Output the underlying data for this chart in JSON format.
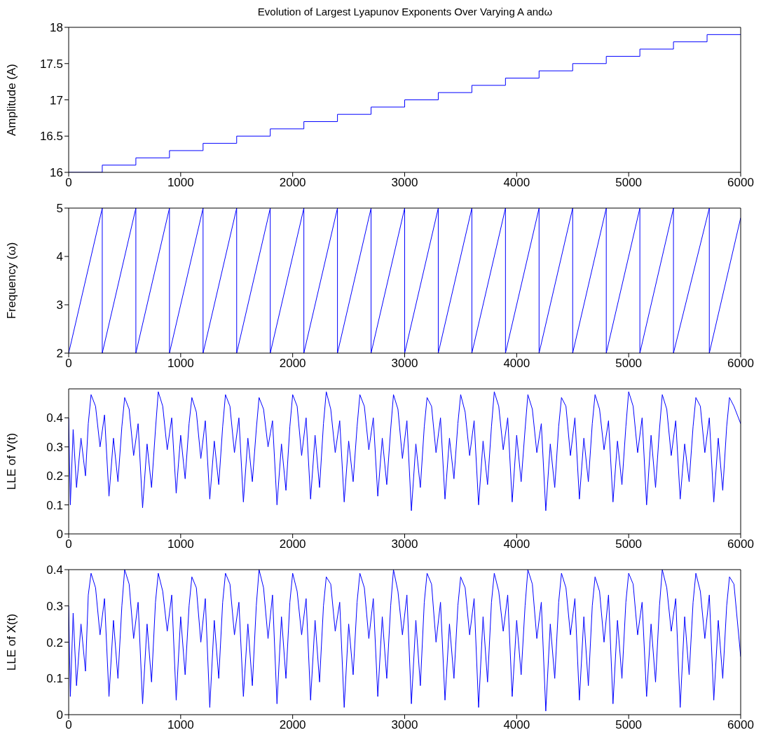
{
  "chart_data": [
    {
      "type": "step",
      "title": "Evolution of Largest Lyapunov Exponents Over Varying A andω",
      "ylabel": "Amplitude (A)",
      "xlim": [
        0,
        6000
      ],
      "xticks": [
        0,
        1000,
        2000,
        3000,
        4000,
        5000,
        6000
      ],
      "ylim": [
        16,
        18
      ],
      "yticks": [
        16,
        16.5,
        17,
        17.5,
        18
      ],
      "grid": false,
      "marker": "none",
      "line_style": "solid",
      "x": [
        0,
        300,
        600,
        900,
        1200,
        1500,
        1800,
        2100,
        2400,
        2700,
        3000,
        3300,
        3600,
        3900,
        4200,
        4500,
        4800,
        5100,
        5400,
        5700,
        6000
      ],
      "series": [
        {
          "color": "#0000ff",
          "values": [
            16,
            16.1,
            16.2,
            16.3,
            16.4,
            16.5,
            16.6,
            16.7,
            16.8,
            16.9,
            17,
            17.1,
            17.2,
            17.3,
            17.4,
            17.5,
            17.6,
            17.7,
            17.8,
            17.9,
            17.9
          ]
        }
      ]
    },
    {
      "type": "line",
      "ylabel": "Frequency (ω)",
      "xlim": [
        0,
        6000
      ],
      "xticks": [
        0,
        1000,
        2000,
        3000,
        4000,
        5000,
        6000
      ],
      "ylim": [
        2,
        5
      ],
      "yticks": [
        2,
        3,
        4,
        5
      ],
      "grid": false,
      "marker": "none",
      "line_style": "solid",
      "x": [
        0,
        300,
        300,
        600,
        600,
        900,
        900,
        1200,
        1200,
        1500,
        1500,
        1800,
        1800,
        2100,
        2100,
        2400,
        2400,
        2700,
        2700,
        3000,
        3000,
        3300,
        3300,
        3600,
        3600,
        3900,
        3900,
        4200,
        4200,
        4500,
        4500,
        4800,
        4800,
        5100,
        5100,
        5400,
        5400,
        5720,
        5720,
        6000
      ],
      "series": [
        {
          "color": "#0000ff",
          "values": [
            2,
            5,
            2,
            5,
            2,
            5,
            2,
            5,
            2,
            5,
            2,
            5,
            2,
            5,
            2,
            5,
            2,
            5,
            2,
            5,
            2,
            5,
            2,
            5,
            2,
            5,
            2,
            5,
            2,
            5,
            2,
            5,
            2,
            5,
            2,
            5,
            2,
            5,
            2,
            4.8
          ]
        }
      ]
    },
    {
      "type": "line",
      "ylabel": "LLE of V(t)",
      "xlim": [
        0,
        6000
      ],
      "xticks": [
        0,
        1000,
        2000,
        3000,
        4000,
        5000,
        6000
      ],
      "ylim": [
        0,
        0.5
      ],
      "yticks": [
        0,
        0.1,
        0.2,
        0.3,
        0.4
      ],
      "grid": false,
      "marker": "none",
      "line_style": "solid",
      "x": [
        0,
        15,
        40,
        70,
        110,
        150,
        175,
        200,
        240,
        280,
        320,
        360,
        400,
        440,
        475,
        500,
        540,
        580,
        620,
        660,
        700,
        740,
        775,
        800,
        840,
        880,
        920,
        960,
        1000,
        1040,
        1075,
        1100,
        1140,
        1180,
        1220,
        1260,
        1300,
        1340,
        1375,
        1400,
        1440,
        1480,
        1520,
        1560,
        1600,
        1640,
        1675,
        1700,
        1740,
        1780,
        1820,
        1860,
        1900,
        1940,
        1975,
        2000,
        2040,
        2080,
        2120,
        2160,
        2200,
        2240,
        2275,
        2300,
        2340,
        2380,
        2420,
        2460,
        2500,
        2540,
        2575,
        2600,
        2640,
        2680,
        2720,
        2760,
        2800,
        2840,
        2875,
        2900,
        2940,
        2980,
        3020,
        3060,
        3100,
        3140,
        3175,
        3200,
        3240,
        3280,
        3320,
        3360,
        3400,
        3440,
        3475,
        3500,
        3540,
        3580,
        3620,
        3660,
        3700,
        3740,
        3775,
        3800,
        3840,
        3880,
        3920,
        3960,
        4000,
        4040,
        4075,
        4100,
        4140,
        4180,
        4220,
        4260,
        4300,
        4340,
        4375,
        4400,
        4440,
        4480,
        4520,
        4560,
        4600,
        4640,
        4675,
        4700,
        4740,
        4780,
        4820,
        4860,
        4900,
        4940,
        4975,
        5000,
        5040,
        5080,
        5120,
        5160,
        5200,
        5240,
        5275,
        5300,
        5340,
        5380,
        5420,
        5460,
        5500,
        5540,
        5575,
        5600,
        5640,
        5680,
        5720,
        5760,
        5800,
        5840,
        5875,
        5900,
        5940,
        6000
      ],
      "series": [
        {
          "color": "#0000ff",
          "values": [
            0.4,
            0.1,
            0.36,
            0.16,
            0.33,
            0.2,
            0.38,
            0.48,
            0.44,
            0.3,
            0.41,
            0.13,
            0.33,
            0.18,
            0.37,
            0.47,
            0.43,
            0.27,
            0.38,
            0.09,
            0.31,
            0.16,
            0.36,
            0.49,
            0.44,
            0.29,
            0.4,
            0.14,
            0.34,
            0.19,
            0.38,
            0.47,
            0.42,
            0.26,
            0.39,
            0.12,
            0.32,
            0.17,
            0.37,
            0.48,
            0.44,
            0.28,
            0.4,
            0.11,
            0.33,
            0.18,
            0.36,
            0.47,
            0.43,
            0.3,
            0.39,
            0.1,
            0.31,
            0.15,
            0.37,
            0.48,
            0.44,
            0.27,
            0.4,
            0.12,
            0.34,
            0.16,
            0.38,
            0.49,
            0.43,
            0.28,
            0.39,
            0.11,
            0.32,
            0.18,
            0.37,
            0.48,
            0.44,
            0.29,
            0.4,
            0.13,
            0.33,
            0.17,
            0.36,
            0.48,
            0.43,
            0.26,
            0.39,
            0.08,
            0.31,
            0.16,
            0.37,
            0.47,
            0.44,
            0.28,
            0.4,
            0.12,
            0.33,
            0.19,
            0.38,
            0.48,
            0.42,
            0.27,
            0.39,
            0.1,
            0.32,
            0.17,
            0.37,
            0.49,
            0.44,
            0.29,
            0.4,
            0.11,
            0.34,
            0.18,
            0.36,
            0.48,
            0.43,
            0.28,
            0.38,
            0.08,
            0.31,
            0.16,
            0.37,
            0.47,
            0.44,
            0.27,
            0.4,
            0.12,
            0.33,
            0.18,
            0.38,
            0.48,
            0.43,
            0.29,
            0.39,
            0.11,
            0.32,
            0.17,
            0.37,
            0.49,
            0.44,
            0.28,
            0.4,
            0.1,
            0.34,
            0.16,
            0.36,
            0.48,
            0.43,
            0.27,
            0.39,
            0.12,
            0.31,
            0.18,
            0.37,
            0.47,
            0.44,
            0.28,
            0.4,
            0.11,
            0.33,
            0.15,
            0.37,
            0.47,
            0.44,
            0.38
          ]
        }
      ]
    },
    {
      "type": "line",
      "ylabel": "LLE of X(t)",
      "xlim": [
        0,
        6000
      ],
      "xticks": [
        0,
        1000,
        2000,
        3000,
        4000,
        5000,
        6000
      ],
      "ylim": [
        0,
        0.4
      ],
      "yticks": [
        0,
        0.1,
        0.2,
        0.3,
        0.4
      ],
      "grid": false,
      "marker": "none",
      "line_style": "solid",
      "x": [
        0,
        15,
        40,
        70,
        110,
        150,
        175,
        200,
        240,
        280,
        320,
        360,
        400,
        440,
        475,
        500,
        540,
        580,
        620,
        660,
        700,
        740,
        775,
        800,
        840,
        880,
        920,
        960,
        1000,
        1040,
        1075,
        1100,
        1140,
        1180,
        1220,
        1260,
        1300,
        1340,
        1375,
        1400,
        1440,
        1480,
        1520,
        1560,
        1600,
        1640,
        1675,
        1700,
        1740,
        1780,
        1820,
        1860,
        1900,
        1940,
        1975,
        2000,
        2040,
        2080,
        2120,
        2160,
        2200,
        2240,
        2275,
        2300,
        2340,
        2380,
        2420,
        2460,
        2500,
        2540,
        2575,
        2600,
        2640,
        2680,
        2720,
        2760,
        2800,
        2840,
        2875,
        2900,
        2940,
        2980,
        3020,
        3060,
        3100,
        3140,
        3175,
        3200,
        3240,
        3280,
        3320,
        3360,
        3400,
        3440,
        3475,
        3500,
        3540,
        3580,
        3620,
        3660,
        3700,
        3740,
        3775,
        3800,
        3840,
        3880,
        3920,
        3960,
        4000,
        4040,
        4075,
        4100,
        4140,
        4180,
        4220,
        4260,
        4300,
        4340,
        4375,
        4400,
        4440,
        4480,
        4520,
        4560,
        4600,
        4640,
        4675,
        4700,
        4740,
        4780,
        4820,
        4860,
        4900,
        4940,
        4975,
        5000,
        5040,
        5080,
        5120,
        5160,
        5200,
        5240,
        5275,
        5300,
        5340,
        5380,
        5420,
        5460,
        5500,
        5540,
        5575,
        5600,
        5640,
        5680,
        5720,
        5760,
        5800,
        5840,
        5875,
        5900,
        5940,
        6000
      ],
      "series": [
        {
          "color": "#0000ff",
          "values": [
            0.3,
            0.05,
            0.28,
            0.08,
            0.25,
            0.12,
            0.33,
            0.39,
            0.35,
            0.22,
            0.32,
            0.05,
            0.26,
            0.1,
            0.3,
            0.4,
            0.36,
            0.21,
            0.31,
            0.03,
            0.25,
            0.09,
            0.31,
            0.39,
            0.34,
            0.23,
            0.33,
            0.04,
            0.27,
            0.11,
            0.3,
            0.38,
            0.35,
            0.2,
            0.32,
            0.02,
            0.26,
            0.1,
            0.31,
            0.39,
            0.36,
            0.22,
            0.31,
            0.05,
            0.25,
            0.08,
            0.3,
            0.4,
            0.35,
            0.21,
            0.33,
            0.03,
            0.27,
            0.1,
            0.31,
            0.39,
            0.34,
            0.22,
            0.32,
            0.04,
            0.26,
            0.09,
            0.3,
            0.38,
            0.36,
            0.23,
            0.31,
            0.02,
            0.25,
            0.11,
            0.31,
            0.39,
            0.35,
            0.21,
            0.32,
            0.05,
            0.27,
            0.1,
            0.3,
            0.4,
            0.34,
            0.22,
            0.33,
            0.03,
            0.26,
            0.08,
            0.31,
            0.39,
            0.36,
            0.2,
            0.31,
            0.04,
            0.25,
            0.1,
            0.3,
            0.38,
            0.35,
            0.22,
            0.32,
            0.02,
            0.27,
            0.09,
            0.31,
            0.39,
            0.34,
            0.23,
            0.33,
            0.05,
            0.26,
            0.11,
            0.3,
            0.4,
            0.36,
            0.21,
            0.31,
            0.01,
            0.25,
            0.1,
            0.31,
            0.39,
            0.35,
            0.22,
            0.32,
            0.04,
            0.27,
            0.08,
            0.3,
            0.38,
            0.34,
            0.2,
            0.33,
            0.03,
            0.26,
            0.1,
            0.31,
            0.39,
            0.36,
            0.22,
            0.31,
            0.05,
            0.25,
            0.09,
            0.3,
            0.4,
            0.35,
            0.23,
            0.32,
            0.02,
            0.27,
            0.11,
            0.31,
            0.39,
            0.34,
            0.21,
            0.33,
            0.04,
            0.26,
            0.1,
            0.3,
            0.38,
            0.36,
            0.16
          ]
        }
      ]
    }
  ]
}
